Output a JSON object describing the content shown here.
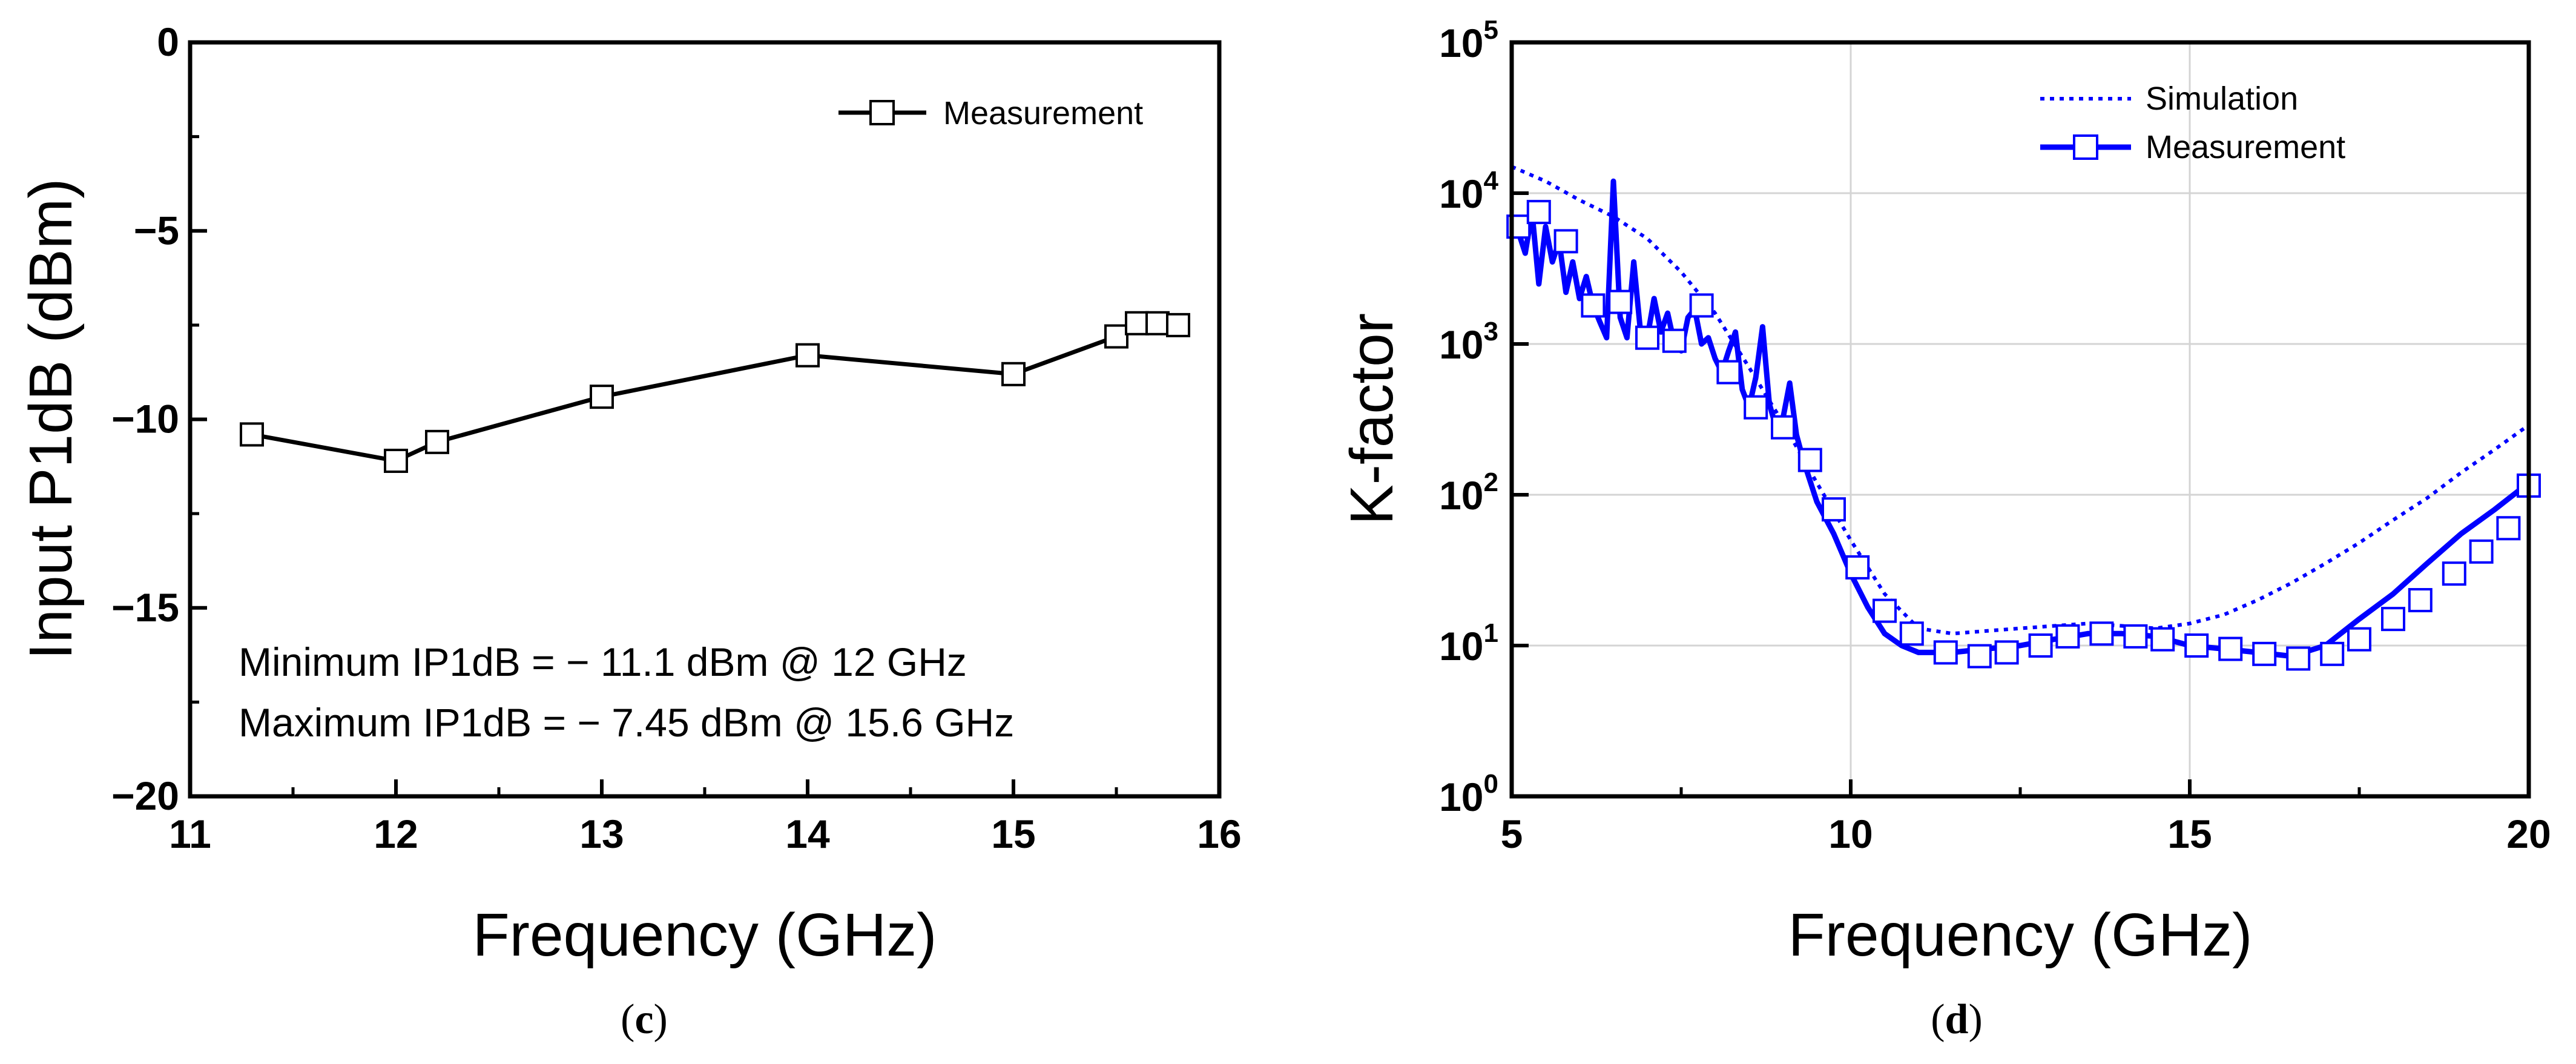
{
  "chart_data": [
    {
      "type": "line",
      "panel": "(c)",
      "caption_letter": "c",
      "xlabel": "Frequency (GHz)",
      "ylabel": "Input P1dB (dBm)",
      "xlim": [
        11,
        16
      ],
      "ylim": [
        -20,
        0
      ],
      "xticks": [
        11,
        12,
        13,
        14,
        15,
        16
      ],
      "yticks": [
        0,
        -5,
        -10,
        -15,
        -20
      ],
      "ytick_labels": [
        "0",
        "−5",
        "−10",
        "−15",
        "−20"
      ],
      "grid": false,
      "legend_position": "top-right",
      "series": [
        {
          "name": "Measurement",
          "color": "#000000",
          "marker": "square",
          "x": [
            11.3,
            12.0,
            12.2,
            13.0,
            14.0,
            15.0,
            15.5,
            15.6,
            15.7,
            15.8
          ],
          "y": [
            -10.4,
            -11.1,
            -10.6,
            -9.4,
            -8.3,
            -8.8,
            -7.8,
            -7.45,
            -7.45,
            -7.5
          ]
        }
      ],
      "annotations": [
        "Minimum IP1dB = − 11.1 dBm @ 12 GHz",
        "Maximum IP1dB = − 7.45 dBm @ 15.6 GHz"
      ]
    },
    {
      "type": "line",
      "panel": "(d)",
      "caption_letter": "d",
      "xlabel": "Frequency (GHz)",
      "ylabel": "K-factor",
      "xscale": "linear",
      "yscale": "log",
      "xlim": [
        5,
        20
      ],
      "ylim": [
        1,
        100000
      ],
      "xticks": [
        5,
        10,
        15,
        20
      ],
      "ytick_exponents": [
        0,
        1,
        2,
        3,
        4,
        5
      ],
      "ytick_base": "10",
      "grid": true,
      "legend_position": "top-center",
      "series": [
        {
          "name": "Simulation",
          "color": "#0000ff",
          "style": "dotted",
          "x": [
            5,
            5.5,
            6,
            6.5,
            7,
            7.5,
            8,
            8.5,
            9,
            9.5,
            10,
            10.5,
            11,
            11.5,
            12,
            12.5,
            13,
            13.5,
            14,
            14.5,
            15,
            15.5,
            16,
            16.5,
            17,
            17.5,
            18,
            18.5,
            19,
            19.5,
            20
          ],
          "y": [
            15000,
            12000,
            9000,
            7000,
            5000,
            3000,
            1600,
            700,
            300,
            120,
            50,
            22,
            13,
            12,
            12.5,
            13,
            13.5,
            14,
            13.5,
            13,
            14,
            16,
            20,
            26,
            35,
            48,
            68,
            95,
            140,
            200,
            290
          ]
        },
        {
          "name": "Measurement",
          "color": "#0000ff",
          "style": "solid",
          "marker": "square",
          "x": [
            5,
            5.1,
            5.2,
            5.3,
            5.4,
            5.5,
            5.6,
            5.7,
            5.8,
            5.9,
            6.0,
            6.1,
            6.2,
            6.3,
            6.4,
            6.5,
            6.6,
            6.7,
            6.8,
            6.9,
            7.0,
            7.1,
            7.2,
            7.3,
            7.4,
            7.5,
            7.6,
            7.7,
            7.8,
            7.9,
            8.0,
            8.1,
            8.2,
            8.3,
            8.4,
            8.5,
            8.6,
            8.7,
            8.8,
            8.9,
            9.0,
            9.1,
            9.2,
            9.3,
            9.5,
            9.75,
            10.0,
            10.25,
            10.5,
            10.75,
            11.0,
            11.25,
            11.5,
            12,
            12.5,
            13,
            13.5,
            14,
            14.5,
            15,
            15.5,
            16,
            16.5,
            17,
            17.5,
            18,
            18.5,
            19,
            19.5,
            20
          ],
          "y": [
            7000,
            5500,
            4000,
            7500,
            2500,
            6000,
            3500,
            4800,
            2200,
            3500,
            2000,
            2800,
            1800,
            1400,
            1100,
            12000,
            1500,
            1100,
            3500,
            1200,
            1100,
            2000,
            1200,
            1600,
            1000,
            900,
            1500,
            1700,
            1000,
            1100,
            800,
            650,
            900,
            1200,
            500,
            380,
            600,
            1300,
            400,
            280,
            320,
            550,
            250,
            170,
            90,
            55,
            30,
            18,
            12,
            10,
            9,
            9,
            9,
            9.5,
            10,
            11,
            12,
            12,
            11.5,
            10,
            9.5,
            9,
            8.5,
            10,
            15,
            22,
            35,
            55,
            80,
            120
          ],
          "markers_x": [
            5.1,
            5.4,
            5.8,
            6.2,
            6.6,
            7.0,
            7.4,
            7.8,
            8.2,
            8.6,
            9.0,
            9.4,
            9.75,
            10.1,
            10.5,
            10.9,
            11.4,
            11.9,
            12.3,
            12.8,
            13.2,
            13.7,
            14.2,
            14.6,
            15.1,
            15.6,
            16.1,
            16.6,
            17.1,
            17.5,
            18.0,
            18.4,
            18.9,
            19.3,
            19.7,
            20.0
          ],
          "markers_y": [
            6000,
            7500,
            4800,
            1800,
            1900,
            1100,
            1050,
            1800,
            650,
            380,
            280,
            170,
            80,
            33,
            17,
            12,
            9,
            8.5,
            9,
            10,
            11.5,
            12,
            11.5,
            11,
            10,
            9.5,
            8.8,
            8.2,
            8.8,
            11,
            15,
            20,
            30,
            42,
            60,
            115
          ]
        }
      ]
    }
  ]
}
